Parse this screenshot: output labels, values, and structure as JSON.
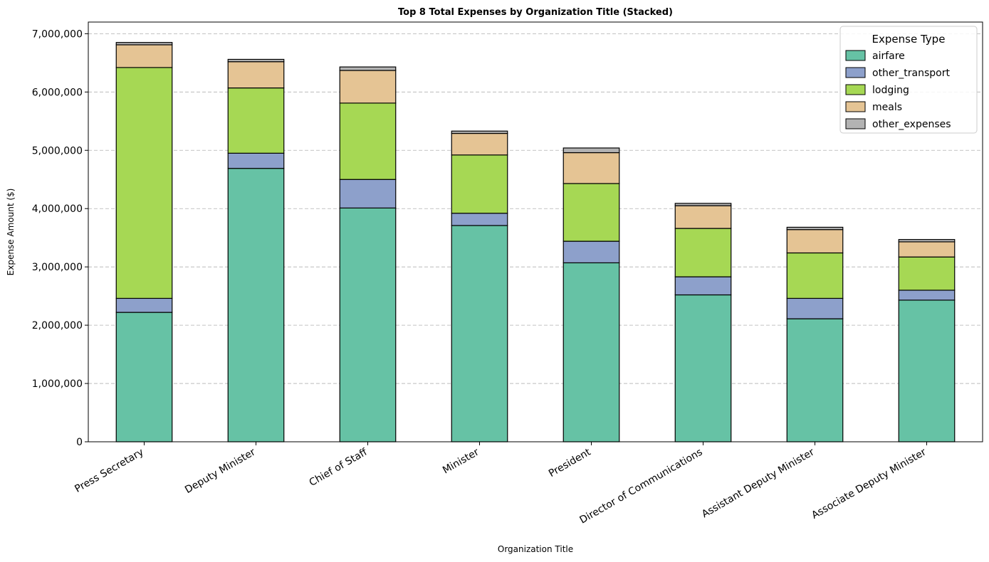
{
  "chart_data": {
    "type": "bar",
    "stacked": true,
    "title": "Top 8 Total Expenses by Organization Title (Stacked)",
    "xlabel": "Organization Title",
    "ylabel": "Expense Amount ($)",
    "ylim": [
      0,
      7200000
    ],
    "yticks": [
      0,
      1000000,
      2000000,
      3000000,
      4000000,
      5000000,
      6000000,
      7000000
    ],
    "ytick_labels": [
      "0",
      "1,000,000",
      "2,000,000",
      "3,000,000",
      "4,000,000",
      "5,000,000",
      "6,000,000",
      "7,000,000"
    ],
    "grid": "y, dashed",
    "legend_title": "Expense Type",
    "legend_position": "top-right",
    "categories": [
      "Press Secretary",
      "Deputy Minister",
      "Chief of Staff",
      "Minister",
      "President",
      "Director of Communications",
      "Assistant Deputy Minister",
      "Associate Deputy Minister"
    ],
    "series": [
      {
        "name": "airfare",
        "color": "#66c2a5",
        "values": [
          2220000,
          4690000,
          4010000,
          3710000,
          3070000,
          2520000,
          2110000,
          2430000
        ]
      },
      {
        "name": "other_transport",
        "color": "#8da0cb",
        "values": [
          240000,
          260000,
          490000,
          210000,
          370000,
          310000,
          350000,
          170000
        ]
      },
      {
        "name": "lodging",
        "color": "#a6d854",
        "values": [
          3960000,
          1120000,
          1310000,
          1000000,
          990000,
          830000,
          780000,
          570000
        ]
      },
      {
        "name": "meals",
        "color": "#e5c494",
        "values": [
          390000,
          450000,
          560000,
          370000,
          530000,
          390000,
          400000,
          260000
        ]
      },
      {
        "name": "other_expenses",
        "color": "#b3b3b3",
        "values": [
          40000,
          40000,
          60000,
          40000,
          80000,
          40000,
          40000,
          40000
        ]
      }
    ]
  }
}
